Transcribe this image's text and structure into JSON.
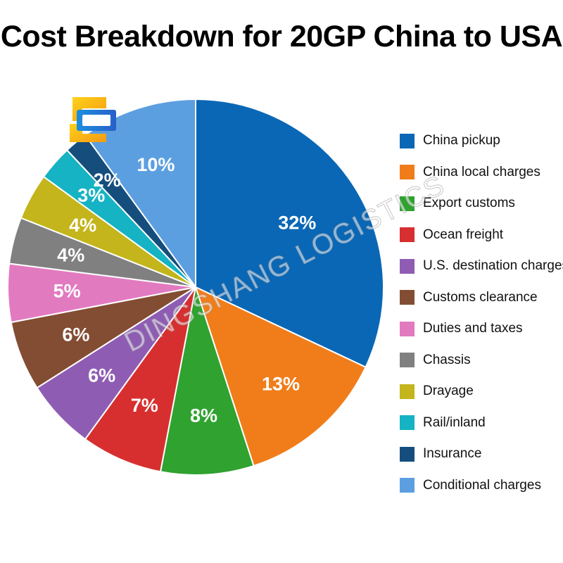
{
  "page": {
    "watermark": "DINGSHANG LOGISTICS",
    "logo_icon": "dingshang-logo-icon"
  },
  "chart_data": {
    "type": "pie",
    "title": "Cost Breakdown for 20GP China to USA",
    "legend_position": "right",
    "slices": [
      {
        "label": "China pickup",
        "value": 32,
        "display": "32%",
        "color": "#0A67B5"
      },
      {
        "label": "China local charges",
        "value": 13,
        "display": "13%",
        "color": "#F07D1A"
      },
      {
        "label": "Export customs",
        "value": 8,
        "display": "8%",
        "color": "#2FA22F"
      },
      {
        "label": "Ocean freight",
        "value": 7,
        "display": "7%",
        "color": "#D72F2F"
      },
      {
        "label": "U.S. destination charges",
        "value": 6,
        "display": "6%",
        "color": "#8E5DB3"
      },
      {
        "label": "Customs clearance",
        "value": 6,
        "display": "6%",
        "color": "#834D33"
      },
      {
        "label": "Duties and taxes",
        "value": 5,
        "display": "5%",
        "color": "#E27AC0"
      },
      {
        "label": "Chassis",
        "value": 4,
        "display": "4%",
        "color": "#808080"
      },
      {
        "label": "Drayage",
        "value": 4,
        "display": "4%",
        "color": "#C3B51B"
      },
      {
        "label": "Rail/inland",
        "value": 3,
        "display": "3%",
        "color": "#15B3C3"
      },
      {
        "label": "Insurance",
        "value": 2,
        "display": "2%",
        "color": "#154E7D"
      },
      {
        "label": "Conditional charges",
        "value": 10,
        "display": "10%",
        "color": "#5C9FE0"
      }
    ]
  }
}
